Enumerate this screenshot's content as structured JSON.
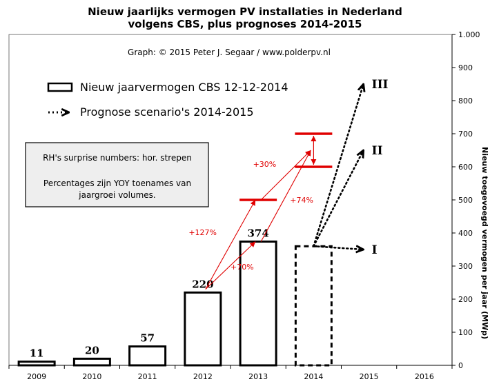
{
  "chart_data": {
    "type": "bar",
    "title_lines": [
      "Nieuw jaarlijks vermogen PV installaties in Nederland",
      "volgens CBS, plus prognoses 2014-2015"
    ],
    "credit": "Graph: © 2015 Peter J. Segaar / www.polderpv.nl",
    "ylabel": "Nieuw toegevoegd vermogen per jaar (MWp)",
    "ylim": [
      0,
      1000
    ],
    "ytick_labels": [
      "0",
      "100",
      "200",
      "300",
      "400",
      "500",
      "600",
      "700",
      "800",
      "900",
      "1.000"
    ],
    "ytick_values": [
      0,
      100,
      200,
      300,
      400,
      500,
      600,
      700,
      800,
      900,
      1000
    ],
    "categories": [
      "2009",
      "2010",
      "2011",
      "2012",
      "2013",
      "2014",
      "2015",
      "2016"
    ],
    "grid": false,
    "legend_position": "top-left",
    "series": [
      {
        "name": "Nieuw jaarvermogen CBS 12-12-2014",
        "style": "solid",
        "values": [
          11,
          20,
          57,
          220,
          374,
          null,
          null,
          null
        ]
      },
      {
        "name": "Prognose scenario's 2014-2015",
        "style": "dotted",
        "values": [
          null,
          null,
          null,
          null,
          null,
          360,
          null,
          null
        ]
      }
    ],
    "data_labels": [
      "11",
      "20",
      "57",
      "220",
      "374"
    ],
    "scenarios": [
      {
        "label": "I",
        "from": [
          "2014",
          360
        ],
        "to": [
          "2015",
          350
        ]
      },
      {
        "label": "II",
        "from": [
          "2014",
          360
        ],
        "to": [
          "2015",
          650
        ]
      },
      {
        "label": "III",
        "from": [
          "2014",
          360
        ],
        "to": [
          "2015",
          850
        ]
      }
    ],
    "red_markers": [
      {
        "category": "2013",
        "value": 500
      },
      {
        "category": "2014",
        "value": 700
      },
      {
        "category": "2014",
        "value": 600
      }
    ],
    "red_growth_arrows": [
      {
        "label": "+127%",
        "from": [
          "2012",
          230
        ],
        "to": [
          "2013",
          500
        ]
      },
      {
        "label": "+70%",
        "from": [
          "2012",
          230
        ],
        "to": [
          "2013",
          374
        ]
      },
      {
        "label": "+30%",
        "from": [
          "2013",
          500
        ],
        "to": [
          "2014",
          650
        ]
      },
      {
        "label": "+74%",
        "from": [
          "2013",
          374
        ],
        "to": [
          "2014",
          650
        ]
      }
    ],
    "note_box": {
      "lines": [
        "RH's surprise numbers: hor. strepen",
        "",
        "Percentages zijn YOY toenames van",
        "jaargroei volumes."
      ]
    },
    "colors": {
      "bars": "#000000",
      "highlight": "#e00000",
      "note_bg": "#eeeeee"
    }
  }
}
